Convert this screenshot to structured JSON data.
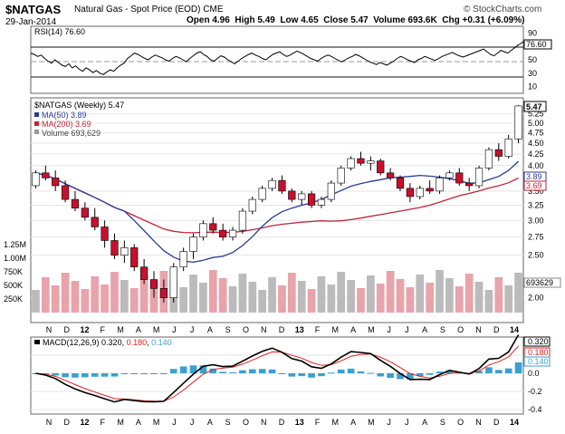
{
  "header": {
    "symbol": "$NATGAS",
    "name": "Natural Gas - Spot Price (EOD) CME",
    "source": "© StockCharts.com",
    "date": "29-Jan-2014",
    "quote": {
      "open_label": "Open",
      "open": "4.96",
      "high_label": "High",
      "high": "5.49",
      "low_label": "Low",
      "low": "4.65",
      "close_label": "Close",
      "close": "5.47",
      "volume_label": "Volume",
      "volume": "693.6K",
      "chg_label": "Chg",
      "chg": "+0.31 (+6.09%)"
    }
  },
  "chart_data": [
    {
      "type": "line",
      "panel": "rsi",
      "legend": "RSI(14) 76.60",
      "current_label": "76.60",
      "y_ticks": [
        10,
        30,
        50,
        70,
        90
      ],
      "ylim": [
        0,
        100
      ],
      "reference_lines": [
        30,
        50,
        70
      ],
      "x": [
        0,
        4,
        8,
        12,
        16,
        20,
        24,
        28,
        32,
        36,
        40,
        44,
        48,
        52,
        56,
        60,
        64,
        68,
        72,
        76,
        80,
        84,
        88,
        92,
        96,
        100,
        104,
        108,
        112,
        116,
        120,
        124,
        128,
        132,
        136,
        140,
        144,
        148,
        152,
        156,
        160,
        164,
        168,
        172,
        176,
        180,
        184,
        188,
        192,
        196,
        200,
        204,
        208,
        212,
        216,
        220,
        224,
        228,
        232,
        236,
        240,
        244,
        248,
        252,
        256,
        260,
        264,
        268,
        272,
        276,
        280,
        284,
        288,
        292,
        296,
        300,
        304,
        308,
        312,
        316,
        320,
        324,
        328,
        332,
        336,
        340,
        344,
        348,
        352,
        356,
        360,
        364,
        368,
        372,
        376,
        380,
        384,
        388,
        392,
        396,
        400,
        404,
        408,
        412,
        416,
        420,
        424,
        428,
        432,
        436,
        440,
        444,
        448,
        452,
        456,
        460,
        464,
        468,
        472,
        476,
        480,
        484,
        488,
        492,
        496,
        500,
        504,
        508,
        512,
        516,
        520,
        524,
        528,
        532,
        536,
        540,
        544,
        548,
        552,
        556,
        560,
        564,
        568,
        570
      ],
      "values": [
        60,
        58,
        55,
        57,
        52,
        48,
        45,
        50,
        46,
        42,
        40,
        44,
        38,
        41,
        36,
        33,
        38,
        35,
        31,
        34,
        30,
        28,
        32,
        35,
        33,
        38,
        42,
        45,
        52,
        56,
        60,
        58,
        55,
        52,
        50,
        54,
        57,
        55,
        53,
        50,
        48,
        52,
        55,
        53,
        50,
        47,
        52,
        56,
        60,
        62,
        58,
        55,
        50,
        48,
        52,
        56,
        54,
        50,
        47,
        44,
        48,
        52,
        55,
        58,
        60,
        57,
        55,
        52,
        50,
        54,
        58,
        60,
        62,
        58,
        55,
        57,
        60,
        63,
        61,
        58,
        55,
        52,
        50,
        48,
        52,
        55,
        57,
        55,
        52,
        49,
        47,
        50,
        53,
        55,
        58,
        56,
        53,
        50,
        47,
        45,
        43,
        46,
        44,
        42,
        45,
        48,
        52,
        55,
        53,
        50,
        48,
        46,
        50,
        52,
        55,
        53,
        51,
        49,
        52,
        55,
        57,
        59,
        61,
        58,
        56,
        54,
        56,
        58,
        60,
        62,
        64,
        66,
        62,
        58,
        56,
        60,
        64,
        62,
        60,
        64,
        68,
        72,
        75,
        77
      ]
    },
    {
      "type": "candlestick",
      "panel": "price",
      "legend": "$NATGAS (Weekly) 5.47",
      "scale": "log",
      "y_ticks": [
        2.0,
        2.5,
        2.75,
        3.0,
        3.25,
        3.5,
        4.0,
        4.25,
        4.5,
        4.75,
        5.0,
        5.25
      ],
      "ylim": [
        1.85,
        5.6
      ],
      "last_price": "5.47",
      "series": [
        {
          "name": "MA(50) 3.89",
          "color": "#2a3b95",
          "last": "3.89"
        },
        {
          "name": "MA(200) 3.69",
          "color": "#c2233a",
          "last": "3.69"
        },
        {
          "name": "Volume 693,629",
          "color": "#9a9a9a",
          "last": "693629"
        }
      ],
      "volume_y_ticks": [
        "250K",
        "500K",
        "750K",
        "1.00M",
        "1.25M"
      ],
      "ohlc_weekly": [
        [
          3.6,
          3.9,
          3.55,
          3.85
        ],
        [
          3.85,
          4.0,
          3.7,
          3.75
        ],
        [
          3.75,
          3.9,
          3.5,
          3.6
        ],
        [
          3.6,
          3.7,
          3.3,
          3.35
        ],
        [
          3.35,
          3.5,
          3.15,
          3.2
        ],
        [
          3.2,
          3.3,
          3.0,
          3.05
        ],
        [
          3.05,
          3.2,
          2.85,
          2.9
        ],
        [
          2.9,
          3.0,
          2.6,
          2.7
        ],
        [
          2.7,
          2.8,
          2.45,
          2.5
        ],
        [
          2.5,
          2.7,
          2.4,
          2.6
        ],
        [
          2.6,
          2.65,
          2.3,
          2.35
        ],
        [
          2.35,
          2.45,
          2.15,
          2.2
        ],
        [
          2.2,
          2.3,
          2.0,
          2.1
        ],
        [
          2.1,
          2.2,
          1.95,
          2.0
        ],
        [
          2.0,
          2.4,
          1.95,
          2.35
        ],
        [
          2.35,
          2.6,
          2.3,
          2.55
        ],
        [
          2.55,
          2.8,
          2.45,
          2.75
        ],
        [
          2.75,
          3.0,
          2.7,
          2.95
        ],
        [
          2.95,
          3.05,
          2.8,
          2.85
        ],
        [
          2.85,
          2.95,
          2.7,
          2.75
        ],
        [
          2.75,
          2.9,
          2.7,
          2.85
        ],
        [
          2.85,
          3.2,
          2.8,
          3.15
        ],
        [
          3.15,
          3.4,
          3.1,
          3.35
        ],
        [
          3.35,
          3.6,
          3.3,
          3.55
        ],
        [
          3.55,
          3.75,
          3.5,
          3.7
        ],
        [
          3.7,
          3.8,
          3.45,
          3.5
        ],
        [
          3.5,
          3.55,
          3.3,
          3.35
        ],
        [
          3.35,
          3.5,
          3.25,
          3.45
        ],
        [
          3.45,
          3.5,
          3.2,
          3.25
        ],
        [
          3.25,
          3.4,
          3.2,
          3.35
        ],
        [
          3.35,
          3.7,
          3.3,
          3.65
        ],
        [
          3.65,
          4.0,
          3.6,
          3.95
        ],
        [
          3.95,
          4.2,
          3.9,
          4.15
        ],
        [
          4.15,
          4.3,
          4.0,
          4.05
        ],
        [
          4.05,
          4.2,
          3.9,
          4.1
        ],
        [
          4.1,
          4.15,
          3.8,
          3.85
        ],
        [
          3.85,
          3.95,
          3.7,
          3.75
        ],
        [
          3.75,
          3.8,
          3.5,
          3.55
        ],
        [
          3.55,
          3.65,
          3.3,
          3.4
        ],
        [
          3.4,
          3.6,
          3.35,
          3.55
        ],
        [
          3.55,
          3.7,
          3.45,
          3.5
        ],
        [
          3.5,
          3.8,
          3.45,
          3.75
        ],
        [
          3.75,
          3.9,
          3.7,
          3.85
        ],
        [
          3.85,
          3.95,
          3.6,
          3.65
        ],
        [
          3.65,
          3.75,
          3.5,
          3.6
        ],
        [
          3.6,
          4.0,
          3.55,
          3.95
        ],
        [
          3.95,
          4.4,
          3.9,
          4.35
        ],
        [
          4.35,
          4.5,
          4.1,
          4.2
        ],
        [
          4.2,
          4.7,
          4.15,
          4.6
        ],
        [
          4.6,
          5.49,
          4.5,
          5.47
        ]
      ]
    },
    {
      "type": "line",
      "panel": "macd",
      "legend_prefix": "MACD(12,26,9)",
      "series": [
        {
          "name": "0.320",
          "color": "#000000",
          "last": 0.32
        },
        {
          "name": "0.180",
          "color": "#e02020",
          "last": 0.18
        },
        {
          "name": "0.140",
          "color": "#3aa0d0",
          "last": 0.14
        }
      ],
      "y_ticks": [
        -0.4,
        -0.2,
        0.0,
        0.2
      ],
      "ylim": [
        -0.45,
        0.4
      ],
      "x_ticks": [
        "N",
        "D",
        "12",
        "F",
        "M",
        "A",
        "M",
        "J",
        "J",
        "A",
        "S",
        "O",
        "N",
        "D",
        "13",
        "F",
        "M",
        "A",
        "M",
        "J",
        "J",
        "A",
        "S",
        "O",
        "N",
        "D",
        "14"
      ]
    }
  ]
}
